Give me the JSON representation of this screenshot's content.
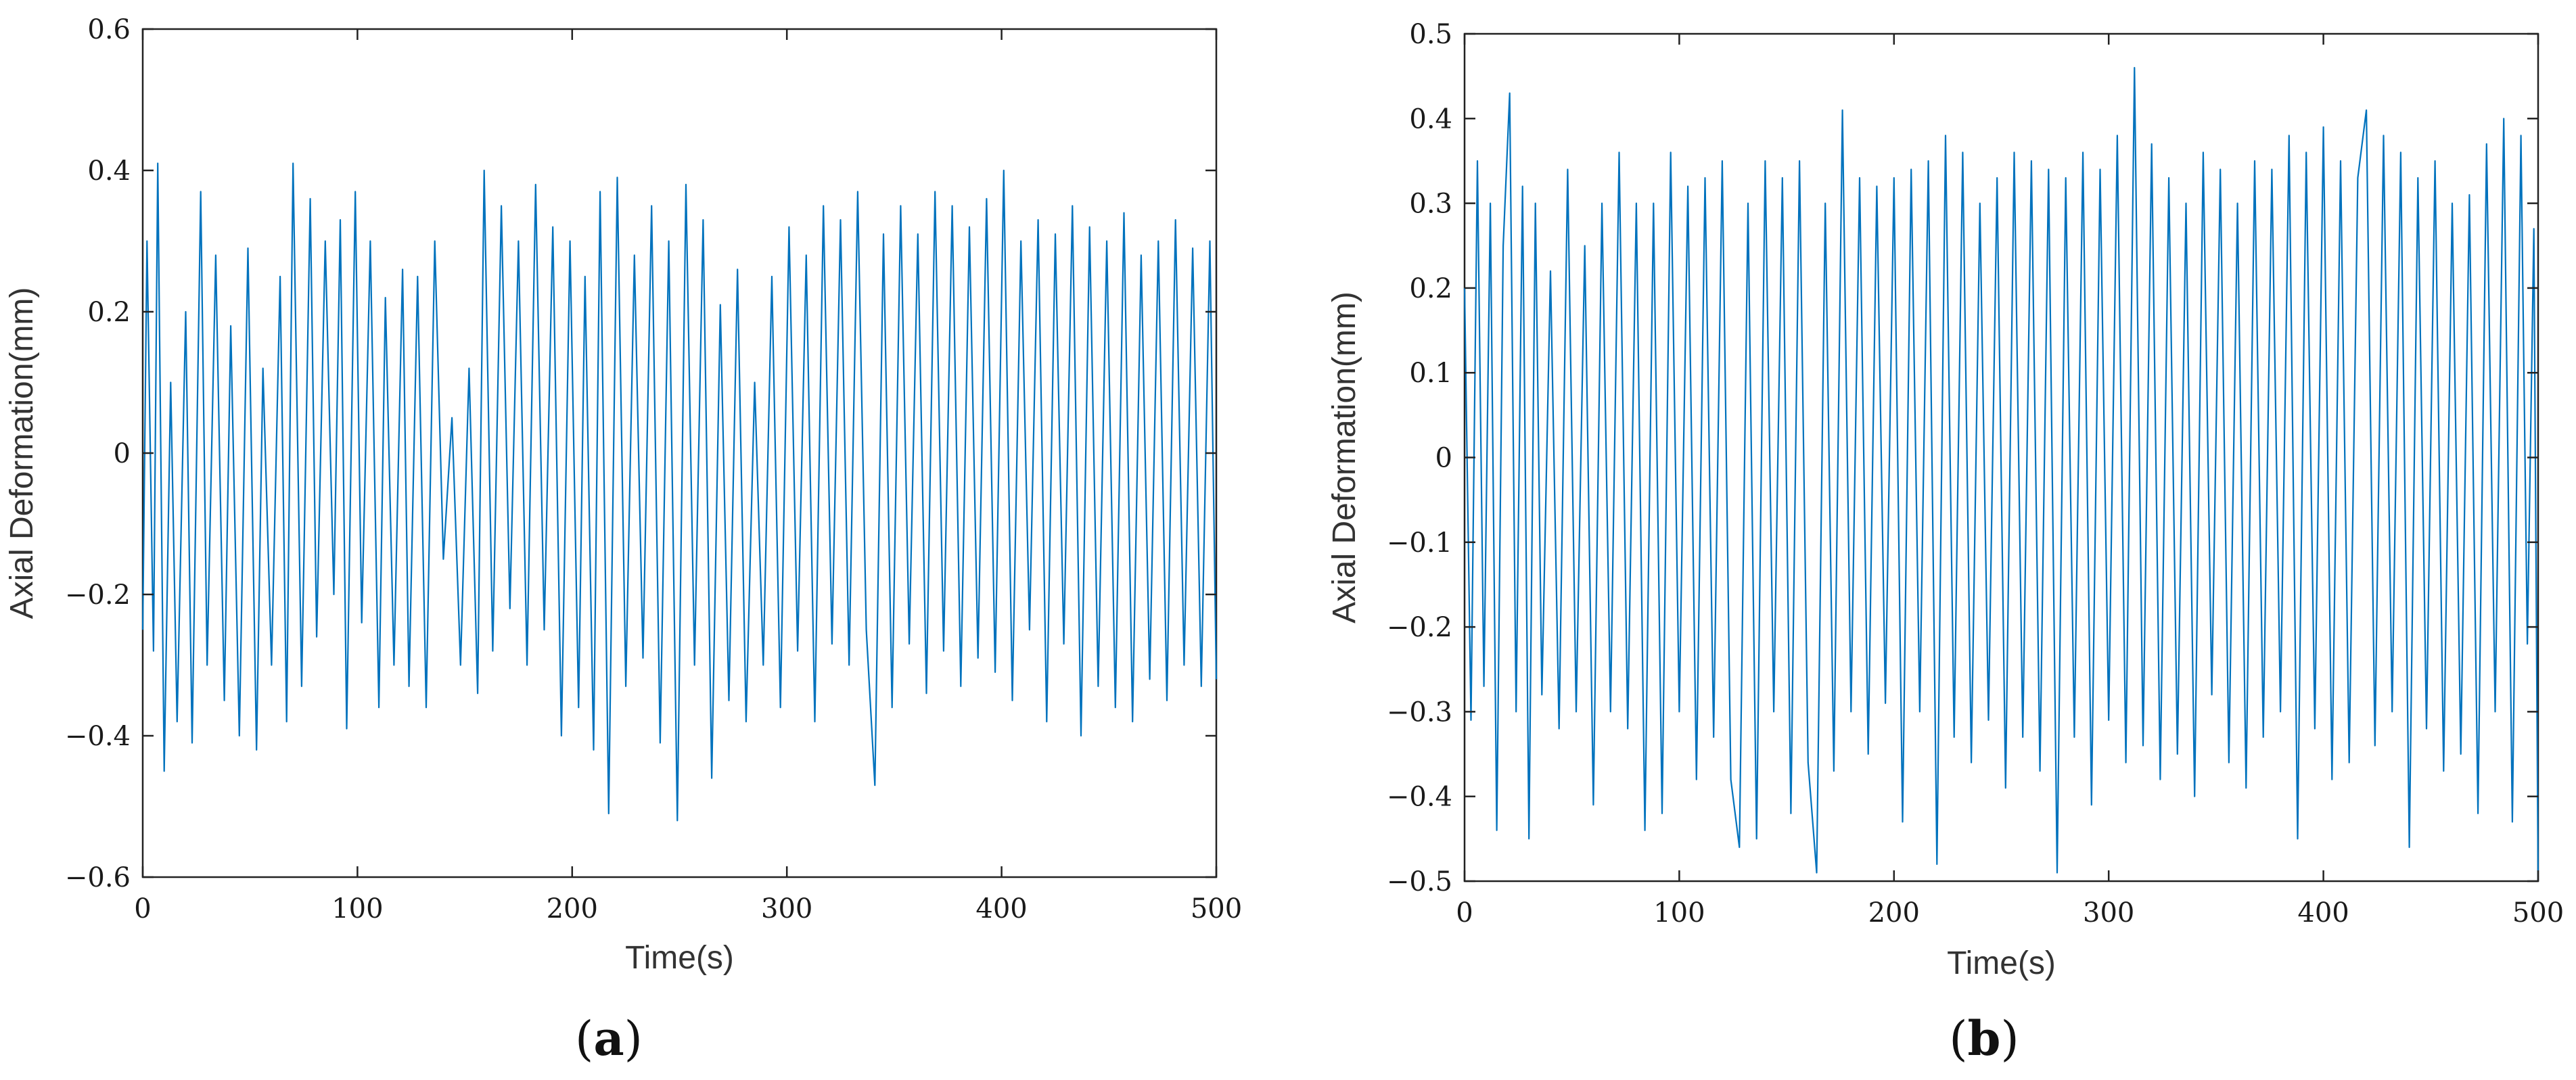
{
  "colors": {
    "series": "#0072BD",
    "axes": "#222222",
    "background": "#ffffff"
  },
  "chart_data": [
    {
      "type": "line",
      "panel_label": "a",
      "xlabel": "Time(s)",
      "ylabel": "Axial Deformation(mm)",
      "xlim": [
        0,
        500
      ],
      "ylim": [
        -0.6,
        0.6
      ],
      "xticks": [
        0,
        100,
        200,
        300,
        400,
        500
      ],
      "yticks": [
        -0.6,
        -0.4,
        -0.2,
        0,
        0.2,
        0.4,
        0.6
      ],
      "xtick_labels": [
        "0",
        "100",
        "200",
        "300",
        "400",
        "500"
      ],
      "ytick_labels": [
        "−0.6",
        "−0.4",
        "−0.2",
        "0",
        "0.2",
        "0.4",
        "0.6"
      ],
      "grid": false,
      "series": [
        {
          "x": [
            0,
            2,
            5,
            7,
            10,
            13,
            16,
            20,
            23,
            27,
            30,
            34,
            38,
            41,
            45,
            49,
            53,
            56,
            60,
            64,
            67,
            70,
            74,
            78,
            81,
            85,
            89,
            92,
            95,
            99,
            102,
            106,
            110,
            113,
            117,
            121,
            124,
            128,
            132,
            136,
            140,
            144,
            148,
            152,
            156,
            159,
            163,
            167,
            171,
            175,
            179,
            183,
            187,
            191,
            195,
            199,
            203,
            206,
            210,
            213,
            217,
            221,
            225,
            229,
            233,
            237,
            241,
            245,
            249,
            253,
            257,
            261,
            265,
            269,
            273,
            277,
            281,
            285,
            289,
            293,
            297,
            301,
            305,
            309,
            313,
            317,
            321,
            325,
            329,
            333,
            337,
            341,
            345,
            349,
            353,
            357,
            361,
            365,
            369,
            373,
            377,
            381,
            385,
            389,
            393,
            397,
            401,
            405,
            409,
            413,
            417,
            421,
            425,
            429,
            433,
            437,
            441,
            445,
            449,
            453,
            457,
            461,
            465,
            469,
            473,
            477,
            481,
            485,
            489,
            493,
            497,
            500
          ],
          "y": [
            -0.25,
            0.3,
            -0.28,
            0.41,
            -0.45,
            0.1,
            -0.38,
            0.2,
            -0.41,
            0.37,
            -0.3,
            0.28,
            -0.35,
            0.18,
            -0.4,
            0.29,
            -0.42,
            0.12,
            -0.3,
            0.25,
            -0.38,
            0.41,
            -0.33,
            0.36,
            -0.26,
            0.3,
            -0.2,
            0.33,
            -0.39,
            0.37,
            -0.24,
            0.3,
            -0.36,
            0.22,
            -0.3,
            0.26,
            -0.33,
            0.25,
            -0.36,
            0.3,
            -0.15,
            0.05,
            -0.3,
            0.12,
            -0.34,
            0.4,
            -0.28,
            0.35,
            -0.22,
            0.3,
            -0.3,
            0.38,
            -0.25,
            0.32,
            -0.4,
            0.3,
            -0.36,
            0.25,
            -0.42,
            0.37,
            -0.51,
            0.39,
            -0.33,
            0.28,
            -0.29,
            0.35,
            -0.41,
            0.3,
            -0.52,
            0.38,
            -0.3,
            0.33,
            -0.46,
            0.21,
            -0.35,
            0.26,
            -0.38,
            0.1,
            -0.3,
            0.25,
            -0.36,
            0.32,
            -0.28,
            0.28,
            -0.38,
            0.35,
            -0.27,
            0.33,
            -0.3,
            0.37,
            -0.25,
            -0.47,
            0.31,
            -0.36,
            0.35,
            -0.27,
            0.31,
            -0.34,
            0.37,
            -0.28,
            0.35,
            -0.33,
            0.32,
            -0.29,
            0.36,
            -0.31,
            0.4,
            -0.35,
            0.3,
            -0.25,
            0.33,
            -0.38,
            0.31,
            -0.27,
            0.35,
            -0.4,
            0.32,
            -0.33,
            0.3,
            -0.36,
            0.34,
            -0.38,
            0.28,
            -0.32,
            0.3,
            -0.35,
            0.33,
            -0.3,
            0.29,
            -0.33,
            0.3,
            -0.32
          ]
        }
      ]
    },
    {
      "type": "line",
      "panel_label": "b",
      "xlabel": "Time(s)",
      "ylabel": "Axial Deformation(mm)",
      "xlim": [
        0,
        500
      ],
      "ylim": [
        -0.5,
        0.5
      ],
      "xticks": [
        0,
        100,
        200,
        300,
        400,
        500
      ],
      "yticks": [
        -0.5,
        -0.4,
        -0.3,
        -0.2,
        -0.1,
        0,
        0.1,
        0.2,
        0.3,
        0.4,
        0.5
      ],
      "xtick_labels": [
        "0",
        "100",
        "200",
        "300",
        "400",
        "500"
      ],
      "ytick_labels": [
        "−0.5",
        "−0.4",
        "−0.3",
        "−0.2",
        "−0.1",
        "0",
        "0.1",
        "0.2",
        "0.3",
        "0.4",
        "0.5"
      ],
      "grid": false,
      "series": [
        {
          "x": [
            0,
            3,
            6,
            9,
            12,
            15,
            18,
            21,
            24,
            27,
            30,
            33,
            36,
            40,
            44,
            48,
            52,
            56,
            60,
            64,
            68,
            72,
            76,
            80,
            84,
            88,
            92,
            96,
            100,
            104,
            108,
            112,
            116,
            120,
            124,
            128,
            132,
            136,
            140,
            144,
            148,
            152,
            156,
            160,
            164,
            168,
            172,
            176,
            180,
            184,
            188,
            192,
            196,
            200,
            204,
            208,
            212,
            216,
            220,
            224,
            228,
            232,
            236,
            240,
            244,
            248,
            252,
            256,
            260,
            264,
            268,
            272,
            276,
            280,
            284,
            288,
            292,
            296,
            300,
            304,
            308,
            312,
            316,
            320,
            324,
            328,
            332,
            336,
            340,
            344,
            348,
            352,
            356,
            360,
            364,
            368,
            372,
            376,
            380,
            384,
            388,
            392,
            396,
            400,
            404,
            408,
            412,
            416,
            420,
            424,
            428,
            432,
            436,
            440,
            444,
            448,
            452,
            456,
            460,
            464,
            468,
            472,
            476,
            480,
            484,
            488,
            492,
            495,
            498,
            500
          ],
          "y": [
            0.2,
            -0.31,
            0.35,
            -0.27,
            0.3,
            -0.44,
            0.25,
            0.43,
            -0.3,
            0.32,
            -0.45,
            0.3,
            -0.28,
            0.22,
            -0.32,
            0.34,
            -0.3,
            0.25,
            -0.41,
            0.3,
            -0.3,
            0.36,
            -0.32,
            0.3,
            -0.44,
            0.3,
            -0.42,
            0.36,
            -0.3,
            0.32,
            -0.38,
            0.33,
            -0.33,
            0.35,
            -0.38,
            -0.46,
            0.3,
            -0.45,
            0.35,
            -0.3,
            0.33,
            -0.42,
            0.35,
            -0.36,
            -0.49,
            0.3,
            -0.37,
            0.41,
            -0.3,
            0.33,
            -0.35,
            0.32,
            -0.29,
            0.33,
            -0.43,
            0.34,
            -0.3,
            0.35,
            -0.48,
            0.38,
            -0.33,
            0.36,
            -0.36,
            0.3,
            -0.31,
            0.33,
            -0.39,
            0.36,
            -0.33,
            0.35,
            -0.37,
            0.34,
            -0.49,
            0.33,
            -0.33,
            0.36,
            -0.41,
            0.34,
            -0.31,
            0.38,
            -0.36,
            0.46,
            -0.34,
            0.37,
            -0.38,
            0.33,
            -0.35,
            0.3,
            -0.4,
            0.36,
            -0.28,
            0.34,
            -0.36,
            0.3,
            -0.39,
            0.35,
            -0.33,
            0.34,
            -0.3,
            0.38,
            -0.45,
            0.36,
            -0.32,
            0.39,
            -0.38,
            0.35,
            -0.36,
            0.33,
            0.41,
            -0.34,
            0.38,
            -0.3,
            0.36,
            -0.46,
            0.33,
            -0.32,
            0.35,
            -0.37,
            0.3,
            -0.35,
            0.31,
            -0.42,
            0.37,
            -0.3,
            0.4,
            -0.43,
            0.38,
            -0.22,
            0.27,
            -0.5
          ]
        }
      ]
    }
  ]
}
